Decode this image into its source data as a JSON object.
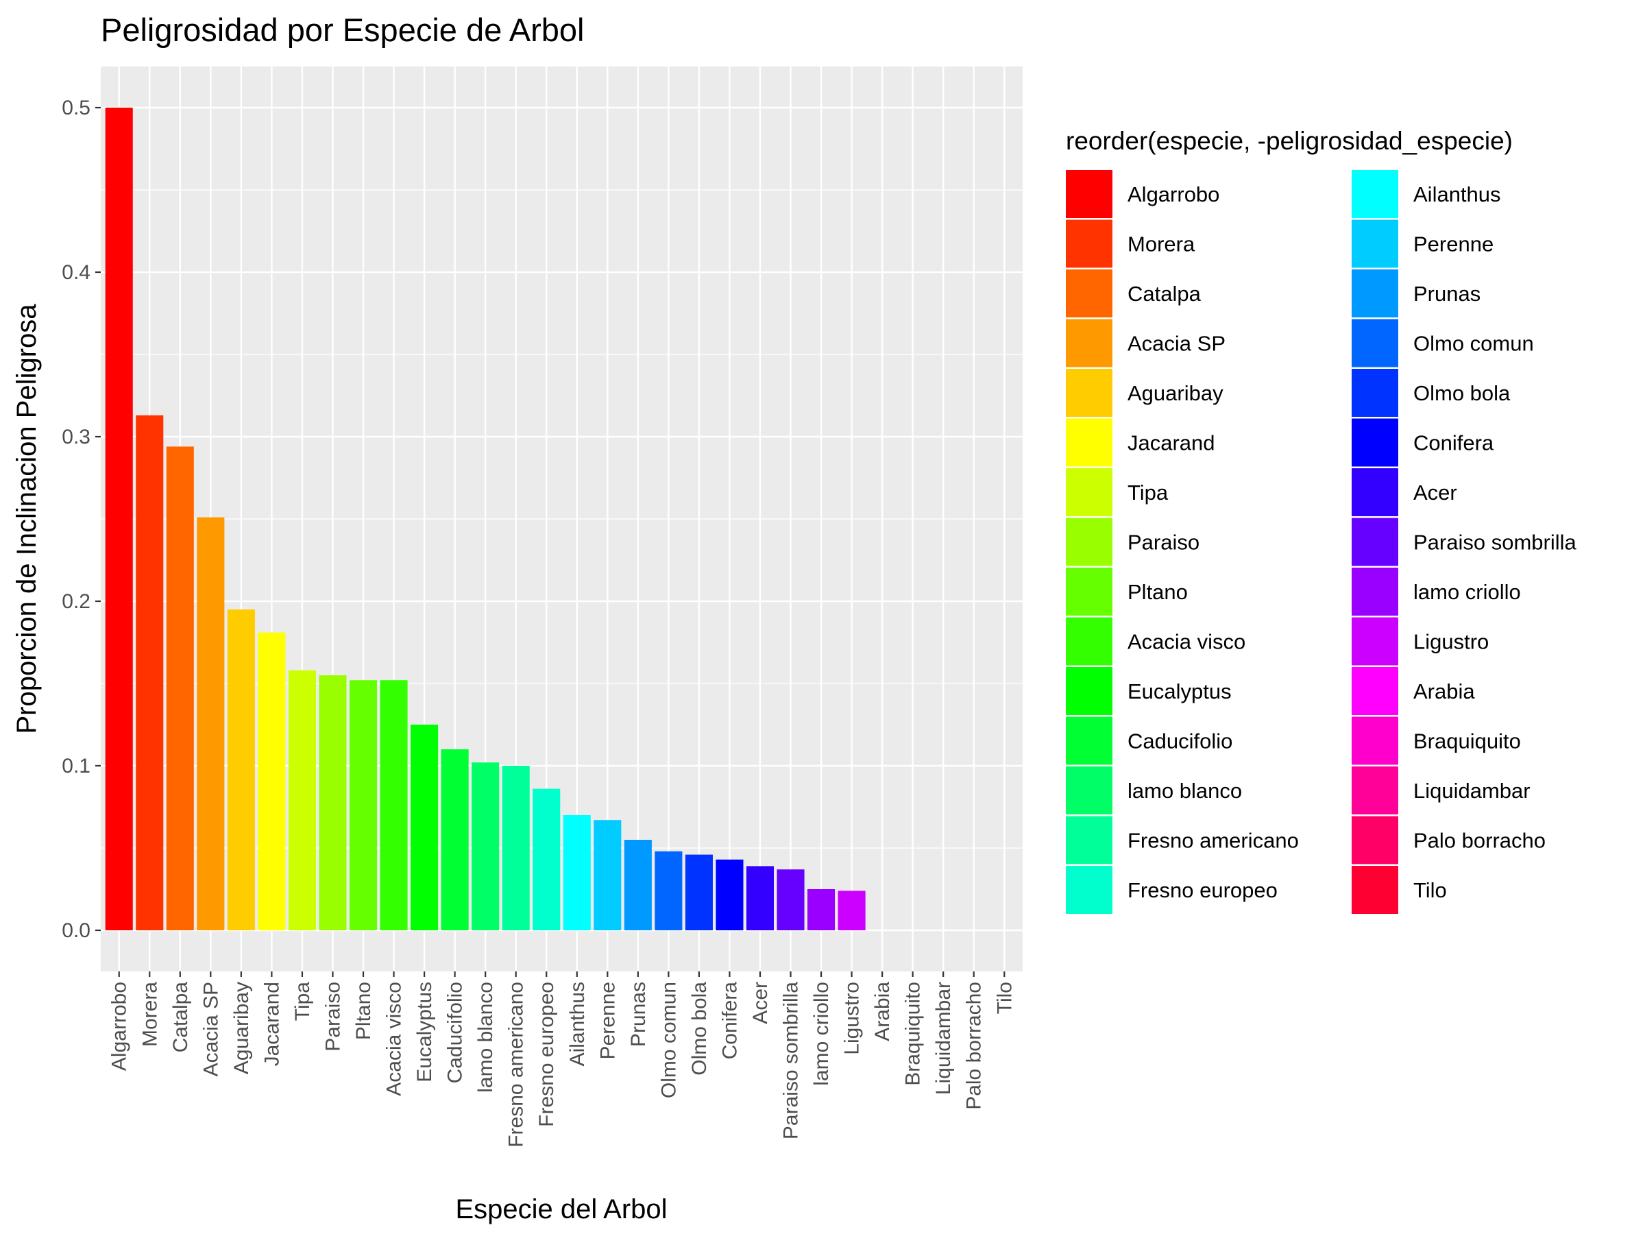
{
  "chart_data": {
    "type": "bar",
    "title": "Peligrosidad por Especie de Arbol",
    "xlabel": "Especie del Arbol",
    "ylabel": "Proporcion de Inclinacion Peligrosa",
    "ylim": [
      -0.025,
      0.525
    ],
    "yticks": [
      "0.0",
      "0.1",
      "0.2",
      "0.3",
      "0.4",
      "0.5"
    ],
    "grid": true,
    "legend_position": "right",
    "legend_title": "reorder(especie, -peligrosidad_especie)",
    "categories": [
      "Algarrobo",
      "Morera",
      "Catalpa",
      "Acacia SP",
      "Aguaribay",
      "Jacarand",
      "Tipa",
      "Paraiso",
      "Pltano",
      "Acacia visco",
      "Eucalyptus",
      "Caducifolio",
      "lamo blanco",
      "Fresno americano",
      "Fresno europeo",
      "Ailanthus",
      "Perenne",
      "Prunas",
      "Olmo comun",
      "Olmo bola",
      "Conifera",
      "Acer",
      "Paraiso sombrilla",
      "lamo criollo",
      "Ligustro",
      "Arabia",
      "Braquiquito",
      "Liquidambar",
      "Palo borracho",
      "Tilo"
    ],
    "values": [
      0.5,
      0.313,
      0.294,
      0.251,
      0.195,
      0.181,
      0.158,
      0.155,
      0.152,
      0.152,
      0.125,
      0.11,
      0.102,
      0.1,
      0.086,
      0.07,
      0.067,
      0.055,
      0.048,
      0.046,
      0.043,
      0.039,
      0.037,
      0.025,
      0.024,
      0,
      0,
      0,
      0,
      0
    ],
    "colors": [
      "#FF0000",
      "#FF3300",
      "#FF6600",
      "#FF9900",
      "#FFCC00",
      "#FFFF00",
      "#CCFF00",
      "#99FF00",
      "#66FF00",
      "#33FF00",
      "#00FF00",
      "#00FF33",
      "#00FF66",
      "#00FF99",
      "#00FFCC",
      "#00FFFF",
      "#00CCFF",
      "#0099FF",
      "#0066FF",
      "#0033FF",
      "#0000FF",
      "#3300FF",
      "#6600FF",
      "#9900FF",
      "#CC00FF",
      "#FF00FF",
      "#FF00CC",
      "#FF0099",
      "#FF0066",
      "#FF0033"
    ]
  }
}
